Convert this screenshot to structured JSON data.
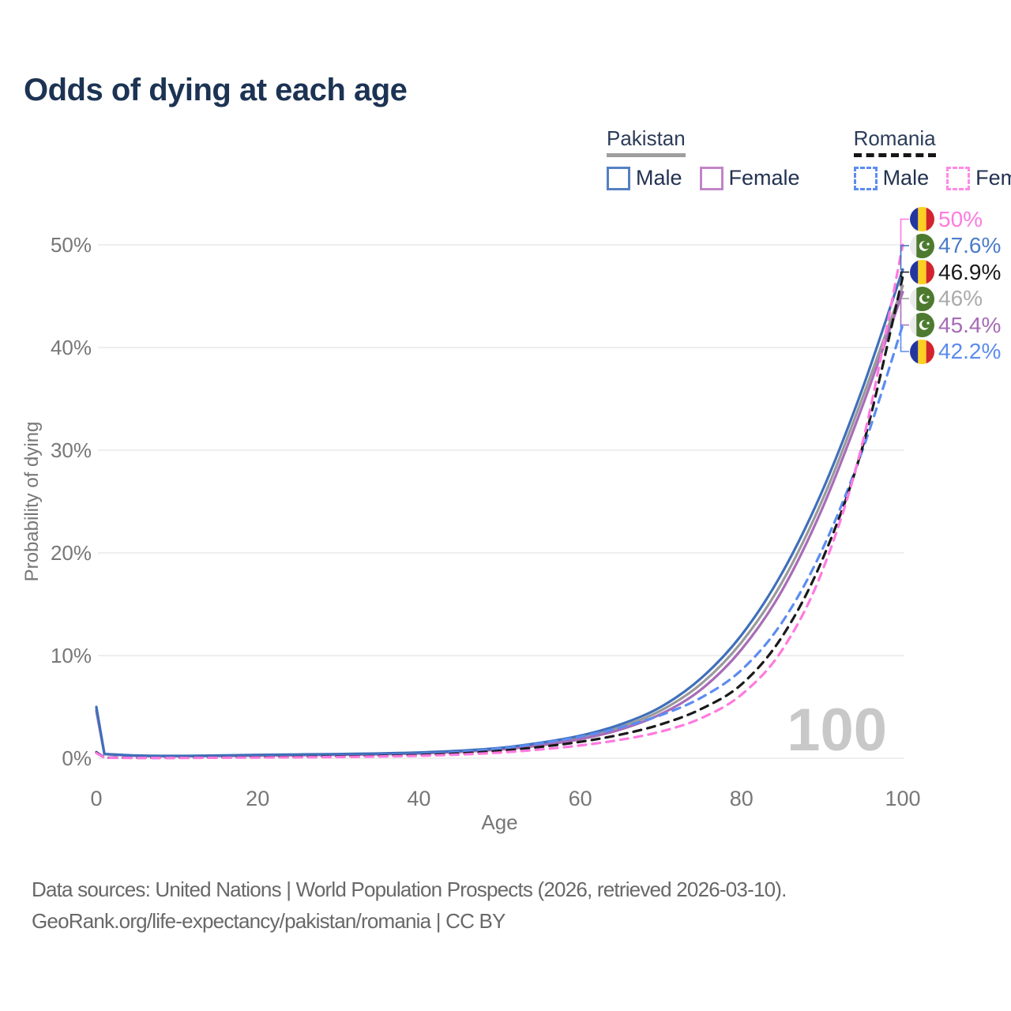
{
  "header": {
    "title": "Odds of dying at each age"
  },
  "legend": {
    "groups": [
      {
        "country": "Pakistan",
        "line_style": "solid",
        "underline_color": "#9e9e9e",
        "items": [
          {
            "label": "Male",
            "color": "#5580c2"
          },
          {
            "label": "Female",
            "color": "#c185c7"
          }
        ]
      },
      {
        "country": "Romania",
        "line_style": "dashed",
        "underline_color": "#161616",
        "items": [
          {
            "label": "Male",
            "color": "#5c8cf0"
          },
          {
            "label": "Female",
            "color": "#ff8ae4"
          }
        ]
      }
    ]
  },
  "chart_data": {
    "type": "line",
    "title": "Odds of dying at each age",
    "xlabel": "Age",
    "ylabel": "Probability of dying",
    "xlim": [
      0,
      100
    ],
    "ylim": [
      0,
      50
    ],
    "x_ticks": [
      0,
      20,
      40,
      60,
      80,
      100
    ],
    "y_ticks": [
      0,
      10,
      20,
      30,
      40,
      50
    ],
    "y_tick_suffix": "%",
    "grid": "horizontal-only",
    "gridline_color": "#e9e9e9",
    "tick_color": "#777777",
    "watermark": "100",
    "watermark_color": "#c8c8c8",
    "series": [
      {
        "id": "pak-total",
        "name": "Pakistan Total",
        "country": "pakistan",
        "color": "#9a9a9a",
        "dashed": false,
        "points": [
          [
            0,
            4.8
          ],
          [
            1,
            0.4
          ],
          [
            5,
            0.25
          ],
          [
            10,
            0.21
          ],
          [
            15,
            0.24
          ],
          [
            20,
            0.29
          ],
          [
            25,
            0.33
          ],
          [
            30,
            0.37
          ],
          [
            35,
            0.42
          ],
          [
            40,
            0.51
          ],
          [
            45,
            0.67
          ],
          [
            50,
            0.93
          ],
          [
            55,
            1.38
          ],
          [
            60,
            2.0
          ],
          [
            65,
            3.05
          ],
          [
            70,
            4.65
          ],
          [
            75,
            7.25
          ],
          [
            80,
            11.3
          ],
          [
            85,
            17.1
          ],
          [
            90,
            25.1
          ],
          [
            95,
            35.1
          ],
          [
            100,
            46.0
          ]
        ]
      },
      {
        "id": "pak-female",
        "name": "Pakistan Female",
        "country": "pakistan",
        "color": "#a86cb8",
        "dashed": false,
        "points": [
          [
            0,
            4.6
          ],
          [
            1,
            0.4
          ],
          [
            5,
            0.24
          ],
          [
            10,
            0.2
          ],
          [
            15,
            0.22
          ],
          [
            20,
            0.26
          ],
          [
            25,
            0.29
          ],
          [
            30,
            0.33
          ],
          [
            35,
            0.38
          ],
          [
            40,
            0.47
          ],
          [
            45,
            0.62
          ],
          [
            50,
            0.85
          ],
          [
            55,
            1.25
          ],
          [
            60,
            1.85
          ],
          [
            65,
            2.8
          ],
          [
            70,
            4.3
          ],
          [
            75,
            6.7
          ],
          [
            80,
            10.6
          ],
          [
            85,
            16.3
          ],
          [
            90,
            24.3
          ],
          [
            95,
            34.3
          ],
          [
            100,
            45.4
          ]
        ]
      },
      {
        "id": "pak-male",
        "name": "Pakistan Male",
        "country": "pakistan",
        "color": "#3f6fba",
        "dashed": false,
        "points": [
          [
            0,
            5.0
          ],
          [
            1,
            0.42
          ],
          [
            5,
            0.27
          ],
          [
            10,
            0.23
          ],
          [
            15,
            0.27
          ],
          [
            20,
            0.33
          ],
          [
            25,
            0.37
          ],
          [
            30,
            0.41
          ],
          [
            35,
            0.46
          ],
          [
            40,
            0.56
          ],
          [
            45,
            0.73
          ],
          [
            50,
            1.0
          ],
          [
            55,
            1.5
          ],
          [
            60,
            2.2
          ],
          [
            65,
            3.3
          ],
          [
            70,
            5.0
          ],
          [
            75,
            7.8
          ],
          [
            80,
            12.0
          ],
          [
            85,
            18.0
          ],
          [
            90,
            26.0
          ],
          [
            95,
            36.0
          ],
          [
            100,
            47.6
          ]
        ]
      },
      {
        "id": "rom-male",
        "name": "Romania Male",
        "country": "romania",
        "color": "#5c8cf0",
        "dashed": true,
        "points": [
          [
            0,
            0.6
          ],
          [
            1,
            0.06
          ],
          [
            5,
            0.05
          ],
          [
            10,
            0.05
          ],
          [
            15,
            0.09
          ],
          [
            20,
            0.13
          ],
          [
            25,
            0.16
          ],
          [
            30,
            0.21
          ],
          [
            35,
            0.29
          ],
          [
            40,
            0.41
          ],
          [
            45,
            0.61
          ],
          [
            50,
            0.95
          ],
          [
            55,
            1.45
          ],
          [
            60,
            2.1
          ],
          [
            65,
            3.0
          ],
          [
            70,
            4.2
          ],
          [
            75,
            5.9
          ],
          [
            80,
            8.6
          ],
          [
            85,
            13.2
          ],
          [
            90,
            20.3
          ],
          [
            95,
            30.0
          ],
          [
            100,
            42.2
          ]
        ]
      },
      {
        "id": "rom-total",
        "name": "Romania Total",
        "country": "romania",
        "color": "#1a1a1a",
        "dashed": true,
        "points": [
          [
            0,
            0.55
          ],
          [
            1,
            0.05
          ],
          [
            5,
            0.04
          ],
          [
            10,
            0.04
          ],
          [
            15,
            0.07
          ],
          [
            20,
            0.1
          ],
          [
            25,
            0.13
          ],
          [
            30,
            0.17
          ],
          [
            35,
            0.23
          ],
          [
            40,
            0.32
          ],
          [
            45,
            0.47
          ],
          [
            50,
            0.72
          ],
          [
            55,
            1.1
          ],
          [
            60,
            1.6
          ],
          [
            65,
            2.3
          ],
          [
            70,
            3.3
          ],
          [
            75,
            4.8
          ],
          [
            80,
            7.2
          ],
          [
            85,
            11.8
          ],
          [
            90,
            19.3
          ],
          [
            95,
            30.3
          ],
          [
            100,
            46.9
          ]
        ]
      },
      {
        "id": "rom-female",
        "name": "Romania Female",
        "country": "romania",
        "color": "#ff7ae0",
        "dashed": true,
        "points": [
          [
            0,
            0.5
          ],
          [
            1,
            0.05
          ],
          [
            5,
            0.03
          ],
          [
            10,
            0.03
          ],
          [
            15,
            0.05
          ],
          [
            20,
            0.07
          ],
          [
            25,
            0.09
          ],
          [
            30,
            0.12
          ],
          [
            35,
            0.17
          ],
          [
            40,
            0.24
          ],
          [
            45,
            0.36
          ],
          [
            50,
            0.55
          ],
          [
            55,
            0.85
          ],
          [
            60,
            1.25
          ],
          [
            65,
            1.8
          ],
          [
            70,
            2.6
          ],
          [
            75,
            3.9
          ],
          [
            80,
            6.2
          ],
          [
            85,
            10.5
          ],
          [
            90,
            18.2
          ],
          [
            95,
            30.7
          ],
          [
            100,
            50.0
          ]
        ]
      }
    ],
    "end_labels": [
      {
        "series": "rom-female",
        "flag": "romania",
        "text": "50%",
        "color": "#ff7ae0"
      },
      {
        "series": "pak-male",
        "flag": "pakistan",
        "text": "47.6%",
        "color": "#4a7cc9"
      },
      {
        "series": "rom-total",
        "flag": "romania",
        "text": "46.9%",
        "color": "#1a1a1a"
      },
      {
        "series": "pak-total",
        "flag": "pakistan",
        "text": "46%",
        "color": "#ababab"
      },
      {
        "series": "pak-female",
        "flag": "pakistan",
        "text": "45.4%",
        "color": "#a66bb5"
      },
      {
        "series": "rom-male",
        "flag": "romania",
        "text": "42.2%",
        "color": "#5b8bee"
      }
    ],
    "flag_colors": {
      "romania": {
        "blue": "#2336a0",
        "yellow": "#fcd020",
        "red": "#d2232e"
      },
      "pakistan": {
        "white": "#ebebeb",
        "green": "#4d7a2f"
      }
    }
  },
  "footer": {
    "line1": "Data sources: United Nations | World Population Prospects (2026, retrieved 2026-03-10).",
    "line2": "GeoRank.org/life-expectancy/pakistan/romania | CC BY"
  }
}
